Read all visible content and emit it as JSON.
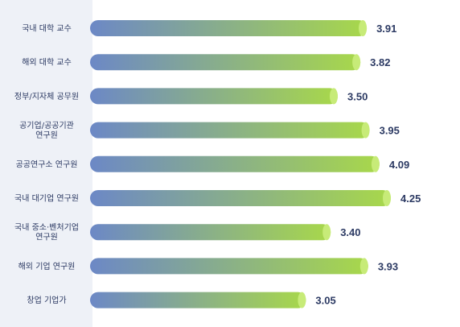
{
  "chart_data": {
    "type": "bar",
    "orientation": "horizontal",
    "categories": [
      [
        "국내 대학 교수"
      ],
      [
        "해외 대학 교수"
      ],
      [
        "정부/지자체 공무원"
      ],
      [
        "공기업/공공기관",
        "연구원"
      ],
      [
        "공공연구소 연구원"
      ],
      [
        "국내 대기업 연구원"
      ],
      [
        "국내 중소·벤처기업",
        "연구원"
      ],
      [
        "해외 기업 연구원"
      ],
      [
        "창업 기업가"
      ]
    ],
    "values": [
      3.91,
      3.82,
      3.5,
      3.95,
      4.09,
      4.25,
      3.4,
      3.93,
      3.05
    ],
    "value_labels": [
      "3.91",
      "3.82",
      "3.50",
      "3.95",
      "4.09",
      "4.25",
      "3.40",
      "3.93",
      "3.05"
    ],
    "title": "",
    "xlabel": "",
    "ylabel": "",
    "grid": false,
    "legend": "none",
    "colors": {
      "bar_start": "#6c88c6",
      "bar_end": "#a8d84a",
      "bar_cap": "#c7eb78",
      "label_panel": "#eef1f7",
      "text": "#2c3a63"
    }
  }
}
